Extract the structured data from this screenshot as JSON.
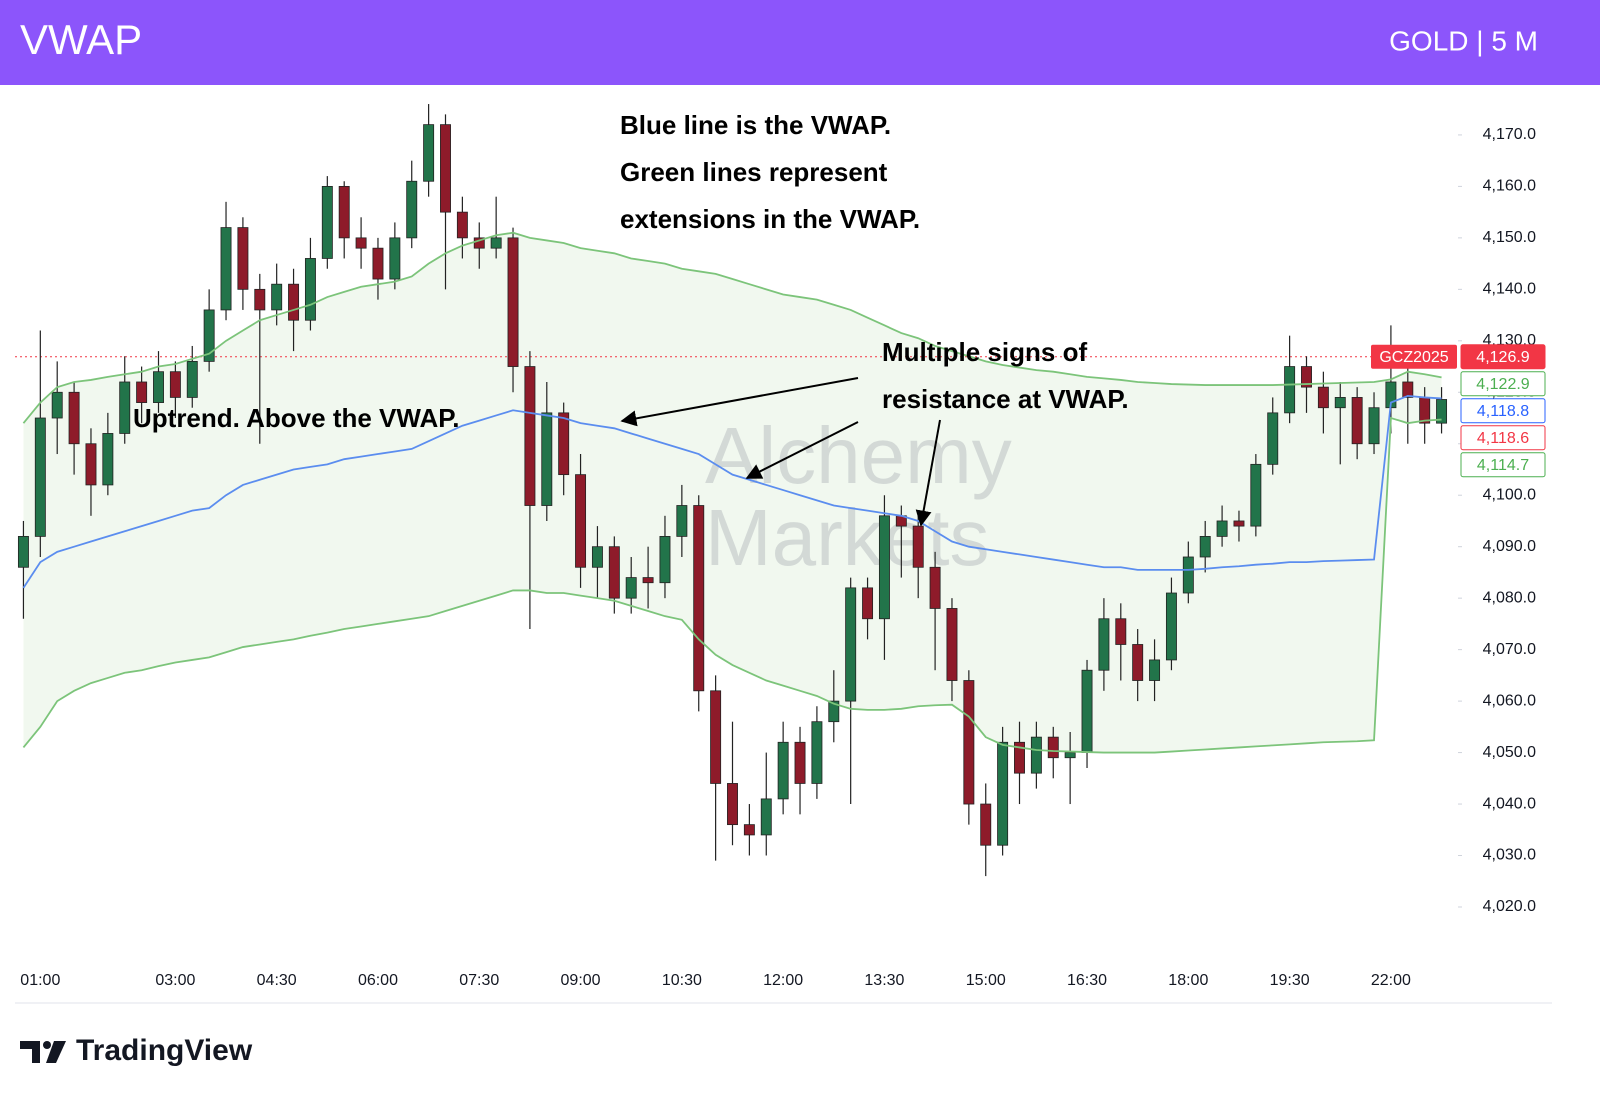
{
  "header": {
    "title": "VWAP",
    "instrument": "GOLD | 5 M"
  },
  "chart_data": {
    "type": "candlestick",
    "up_color": "#22744a",
    "down_color": "#8e1b2a",
    "categories": [
      null,
      "01:00",
      null,
      null,
      null,
      null,
      null,
      null,
      null,
      "03:00",
      null,
      null,
      null,
      null,
      null,
      "04:30",
      null,
      null,
      null,
      null,
      null,
      "06:00",
      null,
      null,
      null,
      null,
      null,
      "07:30",
      null,
      null,
      null,
      null,
      null,
      "09:00",
      null,
      null,
      null,
      null,
      null,
      "10:30",
      null,
      null,
      null,
      null,
      null,
      "12:00",
      null,
      null,
      null,
      null,
      null,
      "13:30",
      null,
      null,
      null,
      null,
      null,
      "15:00",
      null,
      null,
      null,
      null,
      null,
      "16:30",
      null,
      null,
      null,
      null,
      null,
      "18:00",
      null,
      null,
      null,
      null,
      null,
      "19:30",
      null,
      null,
      null,
      null,
      null,
      "22:00",
      null,
      null,
      null
    ],
    "open": [
      4086,
      4092,
      4115,
      4120,
      4110,
      4102,
      4112,
      4122,
      4118,
      4124,
      4119,
      4126,
      4136,
      4152,
      4140,
      4136,
      4141,
      4134,
      4146,
      4160,
      4150,
      4148,
      4142,
      4150,
      4161,
      4172,
      4155,
      4150,
      4148,
      4150,
      4125,
      4098,
      4116,
      4104,
      4086,
      4090,
      4080,
      4084,
      4083,
      4092,
      4098,
      4062,
      4044,
      4036,
      4034,
      4041,
      4052,
      4044,
      4056,
      4060,
      4082,
      4076,
      4096,
      4094,
      4086,
      4078,
      4064,
      4040,
      4032,
      4052,
      4046,
      4053,
      4049,
      4050,
      4066,
      4076,
      4071,
      4064,
      4068,
      4081,
      4088,
      4092,
      4095,
      4094,
      4106,
      4116,
      4125,
      4121,
      4117,
      4119,
      4110,
      4117,
      4122,
      4119,
      4114
    ],
    "high": [
      4095,
      4132,
      4126,
      4122,
      4113,
      4116,
      4127,
      4125,
      4128,
      4126,
      4129,
      4140,
      4157,
      4154,
      4143,
      4145,
      4144,
      4150,
      4162,
      4161,
      4154,
      4150,
      4153,
      4165,
      4176,
      4174,
      4158,
      4153,
      4158,
      4152,
      4128,
      4122,
      4118,
      4108,
      4094,
      4092,
      4088,
      4090,
      4096,
      4102,
      4100,
      4065,
      4056,
      4040,
      4050,
      4056,
      4055,
      4059,
      4066,
      4084,
      4084,
      4100,
      4098,
      4096,
      4089,
      4080,
      4066,
      4044,
      4055,
      4056,
      4056,
      4055,
      4054,
      4068,
      4080,
      4079,
      4074,
      4072,
      4084,
      4091,
      4095,
      4098,
      4097,
      4108,
      4119,
      4131,
      4127,
      4124,
      4122,
      4121,
      4120,
      4133,
      4126,
      4121,
      4121
    ],
    "low": [
      4076,
      4088,
      4108,
      4104,
      4096,
      4100,
      4110,
      4114,
      4116,
      4115,
      4117,
      4124,
      4134,
      4136,
      4110,
      4133,
      4128,
      4132,
      4144,
      4146,
      4144,
      4138,
      4140,
      4148,
      4158,
      4140,
      4146,
      4144,
      4146,
      4120,
      4074,
      4095,
      4100,
      4082,
      4080,
      4077,
      4077,
      4078,
      4080,
      4088,
      4058,
      4029,
      4032,
      4030,
      4030,
      4038,
      4038,
      4041,
      4052,
      4040,
      4072,
      4068,
      4084,
      4080,
      4066,
      4060,
      4036,
      4026,
      4030,
      4040,
      4043,
      4045,
      4040,
      4047,
      4062,
      4064,
      4060,
      4060,
      4066,
      4079,
      4085,
      4090,
      4091,
      4092,
      4104,
      4114,
      4116,
      4112,
      4106,
      4107,
      4108,
      4112,
      4110,
      4110,
      4112
    ],
    "close": [
      4092,
      4115,
      4120,
      4110,
      4102,
      4112,
      4122,
      4118,
      4124,
      4119,
      4126,
      4136,
      4152,
      4140,
      4136,
      4141,
      4134,
      4146,
      4160,
      4150,
      4148,
      4142,
      4150,
      4161,
      4172,
      4155,
      4150,
      4148,
      4150,
      4125,
      4098,
      4116,
      4104,
      4086,
      4090,
      4080,
      4084,
      4083,
      4092,
      4098,
      4062,
      4044,
      4036,
      4034,
      4041,
      4052,
      4044,
      4056,
      4060,
      4082,
      4076,
      4096,
      4094,
      4086,
      4078,
      4064,
      4040,
      4032,
      4052,
      4046,
      4053,
      4049,
      4050,
      4066,
      4076,
      4071,
      4064,
      4068,
      4081,
      4088,
      4092,
      4095,
      4094,
      4106,
      4116,
      4125,
      4121,
      4117,
      4119,
      4110,
      4117,
      4122,
      4119,
      4114,
      4118.6
    ],
    "lines": [
      {
        "color": "#5b8def",
        "values": [
          4082,
          4087,
          4089,
          4090,
          4091,
          4092,
          4093,
          4094,
          4095,
          4096,
          4097,
          4097.5,
          4100,
          4102,
          4103,
          4104,
          4105,
          4105.5,
          4106,
          4107,
          4107.5,
          4108,
          4108.5,
          4109,
          4110.5,
          4112,
          4113.5,
          4114.5,
          4115.5,
          4116.5,
          4116,
          4115.5,
          4115,
          4114,
          4113.5,
          4113,
          4112,
          4111,
          4110,
          4109,
          4108,
          4106,
          4104,
          4103,
          4102,
          4101,
          4100,
          4099,
          4098,
          4097.5,
          4097,
          4096.5,
          4096,
          4095,
          4093,
          4091,
          4090,
          4089.5,
          4089,
          4088.5,
          4088,
          4087.5,
          4087,
          4086.5,
          4086,
          4086,
          4085.5,
          4085.5,
          4085.5,
          4085.5,
          4085.7,
          4086,
          4086.2,
          4086.5,
          4086.7,
          4087,
          4087,
          4087.2,
          4087.3,
          4087.4,
          4087.5,
          4118,
          4119.3,
          4119,
          4118.8
        ]
      },
      {
        "color": "#7cc47a",
        "values": [
          4114,
          4118,
          4121,
          4122,
          4122.4,
          4123,
          4123.5,
          4124,
          4125,
          4125.5,
          4126.5,
          4127.5,
          4130,
          4132,
          4134,
          4135,
          4136,
          4137,
          4138.5,
          4139.5,
          4140.5,
          4141,
          4141.5,
          4142.5,
          4145,
          4147,
          4148.5,
          4149.5,
          4150.5,
          4151,
          4150,
          4149.5,
          4149,
          4148,
          4147.5,
          4147,
          4146,
          4145.5,
          4145,
          4144,
          4143.5,
          4143,
          4142,
          4141,
          4140,
          4139,
          4138.5,
          4138,
          4137,
          4136,
          4134.5,
          4133,
          4131.5,
          4130.5,
          4129,
          4128,
          4127,
          4126,
          4125.3,
          4124.8,
          4124.3,
          4124,
          4123.5,
          4123,
          4122.7,
          4122.4,
          4122,
          4121.8,
          4121.6,
          4121.5,
          4121.4,
          4121.4,
          4121.4,
          4121.4,
          4121.4,
          4121.5,
          4121.6,
          4121.7,
          4121.8,
          4121.9,
          4122,
          4122.5,
          4124,
          4123.5,
          4122.9
        ]
      },
      {
        "color": "#7cc47a",
        "values": [
          4051,
          4055,
          4060,
          4062,
          4063.5,
          4064.5,
          4065.5,
          4066,
          4066.8,
          4067.5,
          4068,
          4068.5,
          4069.5,
          4070.5,
          4071,
          4071.5,
          4072,
          4072.7,
          4073.3,
          4074,
          4074.5,
          4075,
          4075.5,
          4076,
          4076.5,
          4077.5,
          4078.5,
          4079.5,
          4080.5,
          4081.5,
          4081.5,
          4081,
          4081,
          4080.5,
          4080,
          4079.5,
          4078.5,
          4077.5,
          4076.5,
          4075.8,
          4072,
          4069,
          4067,
          4065.5,
          4064,
          4063,
          4062,
          4061,
          4059.5,
          4058.5,
          4058.3,
          4058.3,
          4058.5,
          4059,
          4059.2,
          4059.3,
          4057,
          4053,
          4051.5,
          4051,
          4050.5,
          4050.3,
          4050.2,
          4050.1,
          4050,
          4050,
          4050,
          4050,
          4050.2,
          4050.4,
          4050.6,
          4050.8,
          4051,
          4051.2,
          4051.4,
          4051.6,
          4051.8,
          4052,
          4052.1,
          4052.2,
          4052.4,
          4115,
          4114,
          4114.5,
          4114.7
        ]
      }
    ],
    "band_fill": "#f1f8ef",
    "ylim": [
      4009.7,
      4179.7
    ],
    "yticks": [
      {
        "value": 4020,
        "label": "4,020.0"
      },
      {
        "value": 4030,
        "label": "4,030.0"
      },
      {
        "value": 4040,
        "label": "4,040.0"
      },
      {
        "value": 4050,
        "label": "4,050.0"
      },
      {
        "value": 4060,
        "label": "4,060.0"
      },
      {
        "value": 4070,
        "label": "4,070.0"
      },
      {
        "value": 4080,
        "label": "4,080.0"
      },
      {
        "value": 4090,
        "label": "4,090.0"
      },
      {
        "value": 4100,
        "label": "4,100.0"
      },
      {
        "value": 4110,
        "label": "4,110.0"
      },
      {
        "value": 4120,
        "label": "4,120.0"
      },
      {
        "value": 4130,
        "label": "4,130.0"
      },
      {
        "value": 4140,
        "label": "4,140.0"
      },
      {
        "value": 4150,
        "label": "4,150.0"
      },
      {
        "value": 4160,
        "label": "4,160.0"
      },
      {
        "value": 4170,
        "label": "4,170.0"
      }
    ],
    "price_labels": [
      {
        "value": 4126.9,
        "label": "4,126.9",
        "tag": "GCZ2025",
        "color": "#f23645",
        "style": "filled"
      },
      {
        "value": 4122.9,
        "label": "4,122.9",
        "color": "#4caf50",
        "style": "outline"
      },
      {
        "value": 4118.8,
        "label": "4,118.8",
        "color": "#2962ff",
        "style": "outline"
      },
      {
        "value": 4118.6,
        "label": "4,118.6",
        "color": "#f23645",
        "style": "outline"
      },
      {
        "value": 4114.7,
        "label": "4,114.7",
        "color": "#4caf50",
        "style": "outline"
      }
    ],
    "annotations": [
      {
        "lines": [
          "Blue line is the VWAP.",
          "Green lines represent",
          "extensions in the VWAP."
        ]
      },
      {
        "lines": [
          "Multiple signs of",
          "resistance at VWAP."
        ]
      },
      {
        "lines": [
          "Uptrend. Above the VWAP."
        ]
      }
    ],
    "watermark": [
      "Alchemy",
      "Markets"
    ]
  },
  "footer": {
    "brand": "TradingView"
  }
}
